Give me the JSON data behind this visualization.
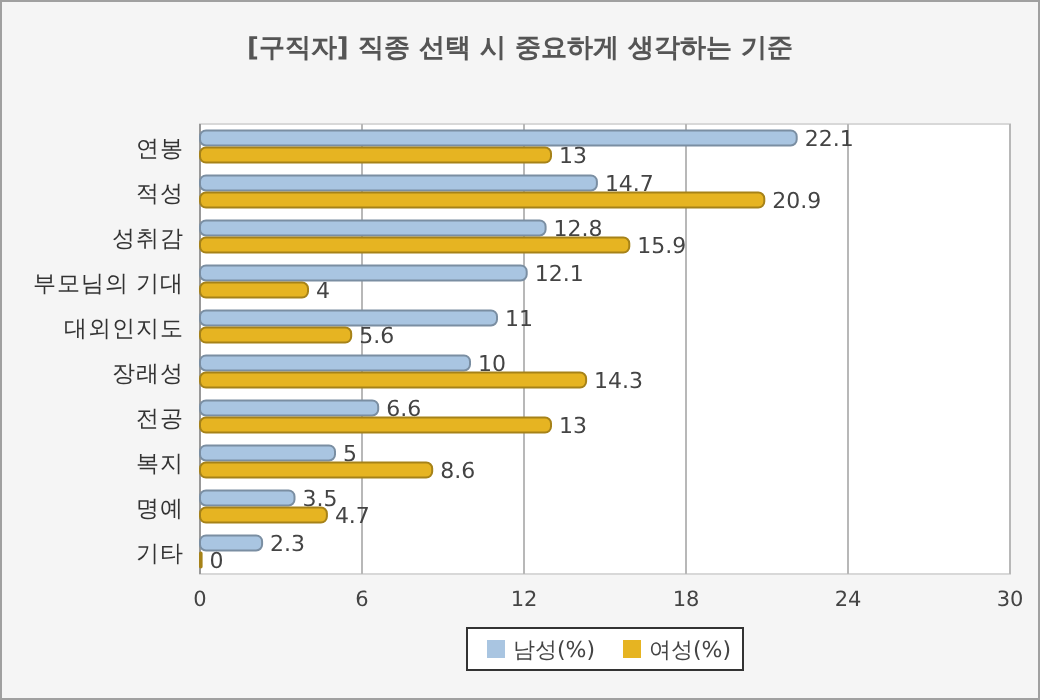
{
  "chart_data": {
    "type": "bar",
    "orientation": "horizontal",
    "title": "[구직자] 직종 선택 시 중요하게 생각하는 기준",
    "categories": [
      "연봉",
      "적성",
      "성취감",
      "부모님의 기대",
      "대외인지도",
      "장래성",
      "전공",
      "복지",
      "명예",
      "기타"
    ],
    "series": [
      {
        "name": "남성(%)",
        "color": "#a9c5e1",
        "values": [
          22.1,
          14.7,
          12.8,
          12.1,
          11,
          10,
          6.6,
          5,
          3.5,
          2.3
        ]
      },
      {
        "name": "여성(%)",
        "color": "#e6b422",
        "values": [
          13,
          20.9,
          15.9,
          4,
          5.6,
          14.3,
          13,
          8.6,
          4.7,
          0
        ]
      }
    ],
    "xlim": [
      0,
      30
    ],
    "xticks": [
      0,
      6,
      12,
      18,
      24,
      30
    ],
    "grid": "x",
    "legend": "bottom",
    "data_labels": true
  }
}
